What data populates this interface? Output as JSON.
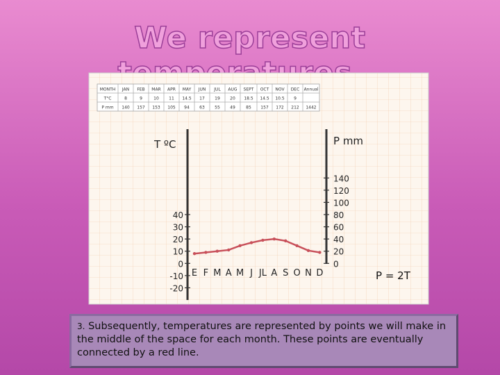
{
  "title": "We represent temperatures…",
  "table": {
    "rows": [
      [
        "MONTH",
        "JAN",
        "FEB",
        "MAR",
        "APR",
        "MAY",
        "JUN",
        "JUL",
        "AUG",
        "SEPT",
        "OCT",
        "NOV",
        "DEC",
        "Annual"
      ],
      [
        "T°C",
        "8",
        "9",
        "10",
        "11",
        "14.5",
        "17",
        "19",
        "20",
        "18.5",
        "14.5",
        "10.5",
        "9",
        ""
      ],
      [
        "P mm",
        "140",
        "157",
        "153",
        "105",
        "94",
        "63",
        "55",
        "49",
        "85",
        "157",
        "172",
        "212",
        "1442"
      ]
    ]
  },
  "chart_data": {
    "type": "line",
    "ylabel": "T ºC",
    "y2label": "P mm",
    "categories": [
      "E",
      "F",
      "M",
      "A",
      "M",
      "J",
      "JL",
      "A",
      "S",
      "O",
      "N",
      "D"
    ],
    "series": [
      {
        "name": "T°C",
        "color": "#c8505a",
        "values": [
          8,
          9,
          10,
          11,
          14.5,
          17,
          19,
          20,
          18.5,
          14.5,
          10.5,
          9
        ]
      }
    ],
    "ylim": [
      -30,
      110
    ],
    "yticks": [
      -20,
      -10,
      0,
      10,
      20,
      30,
      40
    ],
    "y2lim": [
      -60,
      220
    ],
    "y2ticks": [
      0,
      20,
      40,
      60,
      80,
      100,
      120,
      140
    ]
  },
  "formula": "P = 2T",
  "note": {
    "number": "3.",
    "text": "Subsequently, temperatures are represented by points  we will make in the middle of the space for each month. These points are eventually connected by a red line."
  }
}
